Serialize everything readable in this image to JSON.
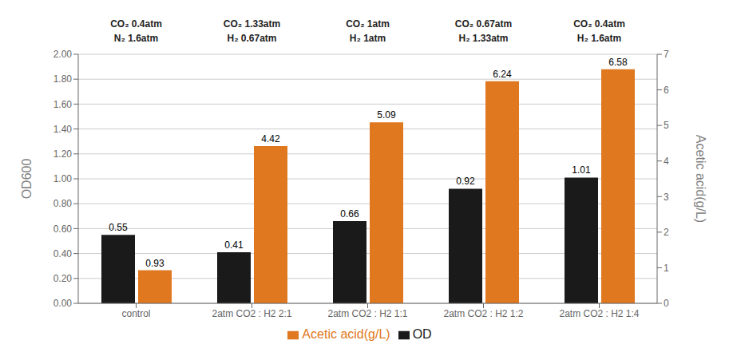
{
  "chart_data": {
    "type": "bar",
    "categories": [
      "control",
      "2atm CO2 : H2 2:1",
      "2atm CO2 : H2 1:1",
      "2atm CO2 : H2 1:2",
      "2atm CO2 : H2 1:4"
    ],
    "series": [
      {
        "name": "OD",
        "color": "#1a1a1a",
        "values": [
          0.55,
          0.41,
          0.66,
          0.92,
          1.01
        ],
        "axis": "y"
      },
      {
        "name": "Acetic acid(g/L)",
        "color": "#E07820",
        "values": [
          0.93,
          4.42,
          5.09,
          6.24,
          6.58
        ],
        "axis": "y2"
      }
    ],
    "annotations": [
      [
        "CO₂ 0.4atm",
        "N₂  1.6atm"
      ],
      [
        "CO₂ 1.33atm",
        "H₂  0.67atm"
      ],
      [
        "CO₂ 1atm",
        "H₂  1atm"
      ],
      [
        "CO₂ 0.67atm",
        "H₂  1.33atm"
      ],
      [
        "CO₂ 0.4atm",
        "H₂  1.6atm"
      ]
    ],
    "ylabel": "OD600",
    "y2label": "Acetic acid(g/L)",
    "ylim": [
      0,
      2.0
    ],
    "yticks": [
      {
        "value": 0.0,
        "label": "0.00"
      },
      {
        "value": 0.2,
        "label": "0.20"
      },
      {
        "value": 0.4,
        "label": "0.40"
      },
      {
        "value": 0.6,
        "label": "0.60"
      },
      {
        "value": 0.8,
        "label": "0.80"
      },
      {
        "value": 1.0,
        "label": "1.00"
      },
      {
        "value": 1.2,
        "label": "1.20"
      },
      {
        "value": 1.4,
        "label": "1.40"
      },
      {
        "value": 1.6,
        "label": "1.60"
      },
      {
        "value": 1.8,
        "label": "1.80"
      },
      {
        "value": 2.0,
        "label": "2.00"
      }
    ],
    "y2lim": [
      0,
      7.0
    ],
    "y2ticks": [
      0,
      1,
      2,
      3,
      4,
      5,
      6,
      7
    ],
    "grid": true,
    "data_labels": true,
    "legend": "bottom"
  }
}
